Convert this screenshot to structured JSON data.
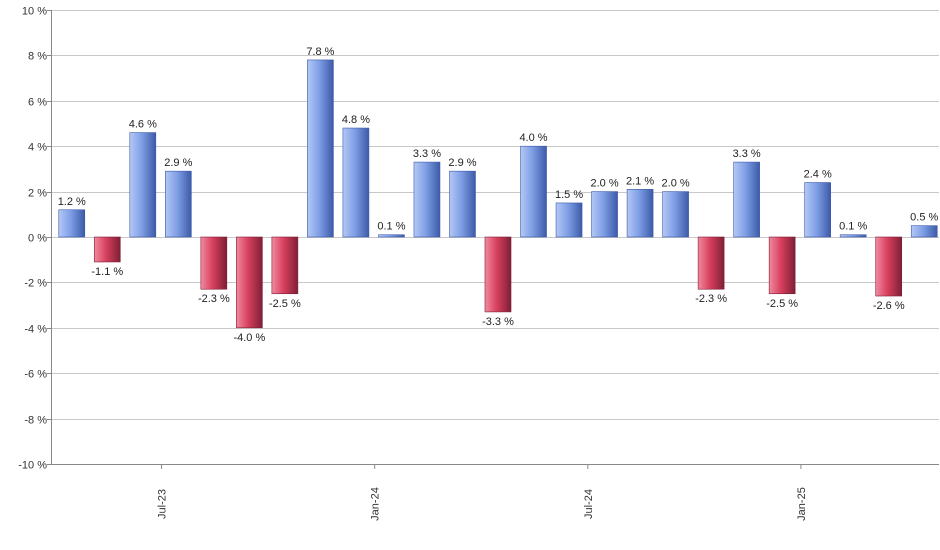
{
  "chart_data": {
    "type": "bar",
    "title": "",
    "xlabel": "",
    "ylabel": "",
    "ylim": [
      -10,
      10
    ],
    "y_ticks": [
      10,
      8,
      6,
      4,
      2,
      0,
      -2,
      -4,
      -6,
      -8,
      -10
    ],
    "y_tick_suffix": " %",
    "grid": true,
    "x_tick_labels": [
      {
        "label": "Jul-23",
        "after_bar": 3
      },
      {
        "label": "Jan-24",
        "after_bar": 9
      },
      {
        "label": "Jul-24",
        "after_bar": 15
      },
      {
        "label": "Jan-25",
        "after_bar": 21
      }
    ],
    "values": [
      1.2,
      -1.1,
      4.6,
      2.9,
      -2.3,
      -4.0,
      -2.5,
      7.8,
      4.8,
      0.1,
      3.3,
      2.9,
      -3.3,
      4.0,
      1.5,
      2.0,
      2.1,
      2.0,
      -2.3,
      3.3,
      -2.5,
      2.4,
      0.1,
      -2.6,
      0.5
    ],
    "data_label_suffix": " %",
    "colors": {
      "positive_light": "#b4c8f5",
      "positive_mid": "#7f9fe6",
      "positive_dark": "#3c5aa8",
      "negative_light": "#f08aa0",
      "negative_mid": "#d8405e",
      "negative_dark": "#7e1f36"
    }
  }
}
